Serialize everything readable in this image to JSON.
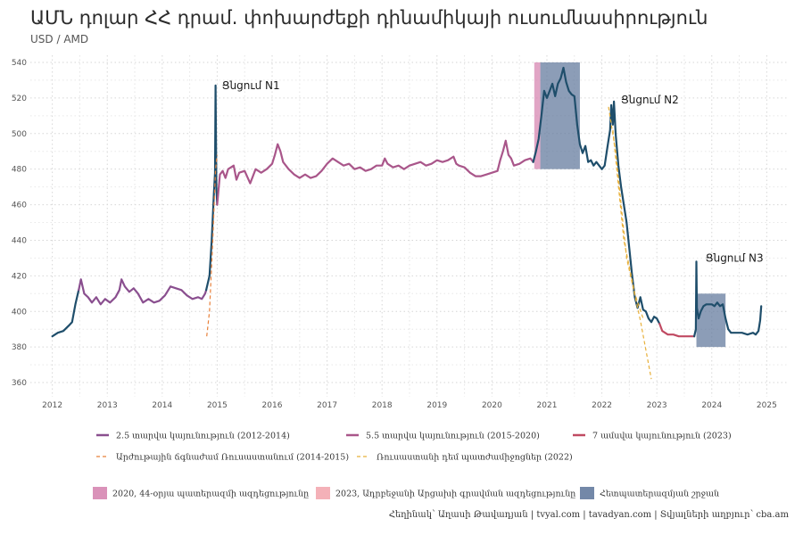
{
  "page": {
    "title": "ԱՄՆ դոլար ՀՀ դրամ. փոխարժեքի դինամիկայի ուսումնասիրություն",
    "subtitle": "USD / AMD",
    "caption": "Հեղինակ՝ Աղասի Թավադյան  |  tvyal.com  |  tavadyan.com  |  Տվյալների աղբյուր՝ cba.am"
  },
  "chart_data": {
    "type": "line",
    "title": "ԱՄՆ դոլար ՀՀ դրամ. փոխարժեքի դինամիկայի ուսումնասիրություն",
    "subtitle": "USD / AMD",
    "xlim": [
      2011.6,
      2025.4
    ],
    "ylim": [
      352,
      544
    ],
    "x_ticks": [
      2012,
      2013,
      2014,
      2015,
      2016,
      2017,
      2018,
      2019,
      2020,
      2021,
      2022,
      2023,
      2024,
      2025
    ],
    "y_ticks": [
      360,
      380,
      400,
      420,
      440,
      460,
      480,
      500,
      520,
      540
    ],
    "grid": true,
    "legend_position": "bottom",
    "default_color": "#1f4e6b",
    "series": [
      {
        "name": "base",
        "color": "#1f4e6b",
        "points": [
          [
            2012.0,
            386
          ],
          [
            2012.1,
            388
          ],
          [
            2012.2,
            389
          ],
          [
            2012.3,
            392
          ],
          [
            2012.36,
            394
          ],
          [
            2012.42,
            404
          ],
          [
            2012.48,
            412
          ]
        ]
      },
      {
        "name": "2.5 տարվա կայունություն (2012-2014)",
        "color": "#8a4f8f",
        "points": [
          [
            2012.48,
            412
          ],
          [
            2012.52,
            418
          ],
          [
            2012.58,
            410
          ],
          [
            2012.65,
            408
          ],
          [
            2012.72,
            405
          ],
          [
            2012.8,
            408
          ],
          [
            2012.88,
            404
          ],
          [
            2012.96,
            407
          ],
          [
            2013.05,
            405
          ],
          [
            2013.15,
            408
          ],
          [
            2013.22,
            412
          ],
          [
            2013.26,
            418
          ],
          [
            2013.32,
            414
          ],
          [
            2013.4,
            411
          ],
          [
            2013.48,
            413
          ],
          [
            2013.56,
            410
          ],
          [
            2013.65,
            405
          ],
          [
            2013.75,
            407
          ],
          [
            2013.85,
            405
          ],
          [
            2013.95,
            406
          ],
          [
            2014.05,
            409
          ],
          [
            2014.15,
            414
          ],
          [
            2014.25,
            413
          ],
          [
            2014.35,
            412
          ],
          [
            2014.45,
            409
          ],
          [
            2014.55,
            407
          ],
          [
            2014.65,
            408
          ],
          [
            2014.72,
            407
          ],
          [
            2014.78,
            410
          ],
          [
            2014.8,
            412
          ]
        ]
      },
      {
        "name": "base",
        "color": "#1f4e6b",
        "points": [
          [
            2014.8,
            412
          ],
          [
            2014.86,
            420
          ],
          [
            2014.9,
            440
          ],
          [
            2014.94,
            466
          ],
          [
            2014.96,
            478
          ],
          [
            2014.97,
            527
          ],
          [
            2014.985,
            470
          ],
          [
            2015.0,
            460
          ]
        ]
      },
      {
        "name": "5.5 տարվա կայունություն (2015-2020)",
        "color": "#a9568a",
        "points": [
          [
            2015.0,
            460
          ],
          [
            2015.05,
            477
          ],
          [
            2015.1,
            479
          ],
          [
            2015.15,
            475
          ],
          [
            2015.2,
            480
          ],
          [
            2015.3,
            482
          ],
          [
            2015.35,
            474
          ],
          [
            2015.4,
            478
          ],
          [
            2015.5,
            479
          ],
          [
            2015.6,
            472
          ],
          [
            2015.7,
            480
          ],
          [
            2015.8,
            478
          ],
          [
            2015.9,
            480
          ],
          [
            2016.0,
            483
          ],
          [
            2016.05,
            488
          ],
          [
            2016.1,
            494
          ],
          [
            2016.15,
            490
          ],
          [
            2016.2,
            484
          ],
          [
            2016.3,
            480
          ],
          [
            2016.4,
            477
          ],
          [
            2016.5,
            475
          ],
          [
            2016.6,
            477
          ],
          [
            2016.7,
            475
          ],
          [
            2016.8,
            476
          ],
          [
            2016.9,
            479
          ],
          [
            2017.0,
            483
          ],
          [
            2017.1,
            486
          ],
          [
            2017.2,
            484
          ],
          [
            2017.3,
            482
          ],
          [
            2017.4,
            483
          ],
          [
            2017.5,
            480
          ],
          [
            2017.6,
            481
          ],
          [
            2017.7,
            479
          ],
          [
            2017.8,
            480
          ],
          [
            2017.9,
            482
          ],
          [
            2018.0,
            482
          ],
          [
            2018.05,
            486
          ],
          [
            2018.1,
            483
          ],
          [
            2018.2,
            481
          ],
          [
            2018.3,
            482
          ],
          [
            2018.4,
            480
          ],
          [
            2018.5,
            482
          ],
          [
            2018.6,
            483
          ],
          [
            2018.7,
            484
          ],
          [
            2018.8,
            482
          ],
          [
            2018.9,
            483
          ],
          [
            2019.0,
            485
          ],
          [
            2019.1,
            484
          ],
          [
            2019.2,
            485
          ],
          [
            2019.3,
            487
          ],
          [
            2019.35,
            483
          ],
          [
            2019.4,
            482
          ],
          [
            2019.5,
            481
          ],
          [
            2019.6,
            478
          ],
          [
            2019.7,
            476
          ],
          [
            2019.8,
            476
          ],
          [
            2019.9,
            477
          ],
          [
            2020.0,
            478
          ],
          [
            2020.1,
            479
          ],
          [
            2020.15,
            485
          ],
          [
            2020.2,
            490
          ],
          [
            2020.25,
            496
          ],
          [
            2020.3,
            488
          ],
          [
            2020.35,
            486
          ],
          [
            2020.4,
            482
          ],
          [
            2020.5,
            483
          ],
          [
            2020.6,
            485
          ],
          [
            2020.7,
            486
          ],
          [
            2020.75,
            484
          ]
        ]
      },
      {
        "name": "base",
        "color": "#1f4e6b",
        "points": [
          [
            2020.75,
            484
          ],
          [
            2020.8,
            490
          ],
          [
            2020.85,
            497
          ],
          [
            2020.9,
            510
          ],
          [
            2020.95,
            524
          ],
          [
            2021.0,
            520
          ],
          [
            2021.05,
            524
          ],
          [
            2021.1,
            528
          ],
          [
            2021.15,
            521
          ],
          [
            2021.2,
            528
          ],
          [
            2021.25,
            531
          ],
          [
            2021.3,
            537
          ],
          [
            2021.35,
            529
          ],
          [
            2021.4,
            524
          ],
          [
            2021.45,
            522
          ],
          [
            2021.5,
            521
          ],
          [
            2021.55,
            505
          ],
          [
            2021.6,
            494
          ],
          [
            2021.65,
            489
          ],
          [
            2021.7,
            493
          ],
          [
            2021.75,
            484
          ],
          [
            2021.8,
            485
          ],
          [
            2021.85,
            482
          ],
          [
            2021.9,
            484
          ],
          [
            2022.0,
            480
          ],
          [
            2022.05,
            482
          ],
          [
            2022.1,
            492
          ],
          [
            2022.15,
            502
          ],
          [
            2022.17,
            516
          ],
          [
            2022.2,
            505
          ],
          [
            2022.22,
            518
          ],
          [
            2022.25,
            500
          ],
          [
            2022.3,
            482
          ],
          [
            2022.35,
            470
          ],
          [
            2022.4,
            460
          ],
          [
            2022.45,
            450
          ],
          [
            2022.5,
            435
          ],
          [
            2022.55,
            420
          ],
          [
            2022.6,
            408
          ],
          [
            2022.65,
            402
          ],
          [
            2022.7,
            408
          ],
          [
            2022.75,
            401
          ],
          [
            2022.8,
            400
          ],
          [
            2022.85,
            396
          ],
          [
            2022.9,
            394
          ],
          [
            2022.95,
            397
          ],
          [
            2023.0,
            396
          ],
          [
            2023.05,
            393
          ]
        ]
      },
      {
        "name": "7 ամսվա կայունություն (2023)",
        "color": "#c04a62",
        "points": [
          [
            2023.05,
            393
          ],
          [
            2023.1,
            389
          ],
          [
            2023.2,
            387
          ],
          [
            2023.3,
            387
          ],
          [
            2023.4,
            386
          ],
          [
            2023.5,
            386
          ],
          [
            2023.6,
            386
          ],
          [
            2023.68,
            386
          ]
        ]
      },
      {
        "name": "base",
        "color": "#1f4e6b",
        "points": [
          [
            2023.68,
            386
          ],
          [
            2023.71,
            390
          ],
          [
            2023.72,
            428
          ],
          [
            2023.73,
            402
          ],
          [
            2023.76,
            396
          ],
          [
            2023.8,
            400
          ],
          [
            2023.85,
            403
          ],
          [
            2023.9,
            404
          ],
          [
            2024.0,
            404
          ],
          [
            2024.05,
            403
          ],
          [
            2024.1,
            405
          ],
          [
            2024.15,
            403
          ],
          [
            2024.2,
            404
          ],
          [
            2024.25,
            396
          ],
          [
            2024.3,
            390
          ],
          [
            2024.35,
            388
          ],
          [
            2024.45,
            388
          ],
          [
            2024.55,
            388
          ],
          [
            2024.65,
            387
          ],
          [
            2024.75,
            388
          ],
          [
            2024.8,
            387
          ],
          [
            2024.85,
            389
          ],
          [
            2024.88,
            395
          ],
          [
            2024.9,
            403
          ]
        ]
      }
    ],
    "dashed_series": [
      {
        "name": "Արժութային ճգնաժամ Ռուսաստանում (2014-2015)",
        "color": "#e8803a",
        "points": [
          [
            2014.81,
            386
          ],
          [
            2014.86,
            400
          ],
          [
            2014.92,
            440
          ],
          [
            2014.97,
            480
          ],
          [
            2015.0,
            488
          ]
        ]
      },
      {
        "name": "Ռուսաստանի դեմ պատժամիջոցներ (2022)",
        "color": "#e8b03a",
        "points": [
          [
            2022.12,
            515
          ],
          [
            2022.25,
            490
          ],
          [
            2022.45,
            430
          ],
          [
            2022.7,
            395
          ],
          [
            2022.9,
            362
          ]
        ]
      },
      {
        "name": "Ռուսաստանի դեմ պատժամիջոցներ (2022)",
        "color": "#e8b03a",
        "points": [
          [
            2022.2,
            502
          ],
          [
            2022.4,
            440
          ],
          [
            2022.6,
            410
          ],
          [
            2022.75,
            396
          ]
        ]
      }
    ],
    "highlight_regions": [
      {
        "name": "2020, 44-օրյա պատերազմի ազդեցությունը",
        "color": "#d47fad",
        "x0": 2020.77,
        "x1": 2020.88,
        "y0": 480,
        "y1": 540
      },
      {
        "name": "Հետպատերազմյան շրջան",
        "color": "#5b7399",
        "x0": 2020.88,
        "x1": 2021.6,
        "y0": 480,
        "y1": 540
      },
      {
        "name": "Հետպատերազմյան շրջան",
        "color": "#5b7399",
        "x0": 2023.72,
        "x1": 2024.25,
        "y0": 380,
        "y1": 410
      }
    ],
    "annotations": [
      {
        "text": "Ցնցում N1",
        "x": 2015.02,
        "y": 525
      },
      {
        "text": "Ցնցում N2",
        "x": 2022.28,
        "y": 517
      },
      {
        "text": "Ցնցում N3",
        "x": 2023.82,
        "y": 428
      }
    ],
    "legend": [
      {
        "label": "2.5 տարվա կայունություն (2012-2014)",
        "kind": "line",
        "color": "#8a4f8f"
      },
      {
        "label": "5.5 տարվա կայունություն (2015-2020)",
        "kind": "line",
        "color": "#a9568a"
      },
      {
        "label": "7 ամսվա կայունություն (2023)",
        "kind": "line",
        "color": "#c04a62"
      },
      {
        "label": "Արժութային ճգնաժամ Ռուսաստանում (2014-2015)",
        "kind": "dash",
        "color": "#e8803a"
      },
      {
        "label": "Ռուսաստանի դեմ պատժամիջոցներ (2022)",
        "kind": "dash",
        "color": "#e8b03a"
      },
      {
        "label": "2020, 44-օրյա պատերազմի ազդեցությունը",
        "kind": "box",
        "color": "#d47fad"
      },
      {
        "label": "2023, Ադրբեջանի Արցախի գրավման ազդեցությունը",
        "kind": "box",
        "color": "#f2a3ac"
      },
      {
        "label": "Հետպատերազմյան շրջան",
        "kind": "box",
        "color": "#5b7399"
      }
    ]
  }
}
